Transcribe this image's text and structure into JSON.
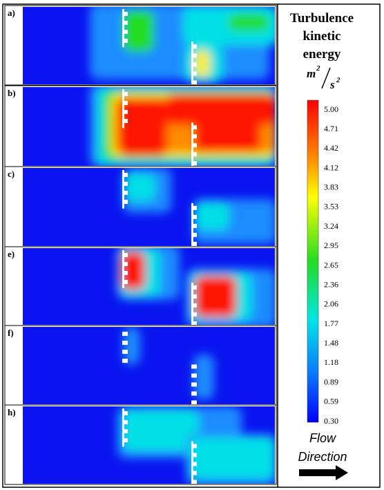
{
  "panels": [
    {
      "label": "a)"
    },
    {
      "label": "b)"
    },
    {
      "label": "c)"
    },
    {
      "label": "e)"
    },
    {
      "label": "f)"
    },
    {
      "label": "h)"
    }
  ],
  "colorbar": {
    "title": [
      "Turbulence",
      "kinetic",
      "energy"
    ],
    "unit": {
      "numerator": "m",
      "numerator_exponent": "2",
      "denominator": "s",
      "denominator_exponent": "2"
    },
    "ticks": [
      "5.00",
      "4.71",
      "4.42",
      "4.12",
      "3.83",
      "3.53",
      "3.24",
      "2.95",
      "2.65",
      "2.36",
      "2.06",
      "1.77",
      "1.48",
      "1.18",
      "0.89",
      "0.59",
      "0.30"
    ]
  },
  "flow": {
    "lines": [
      "Flow",
      "Direction"
    ]
  }
}
